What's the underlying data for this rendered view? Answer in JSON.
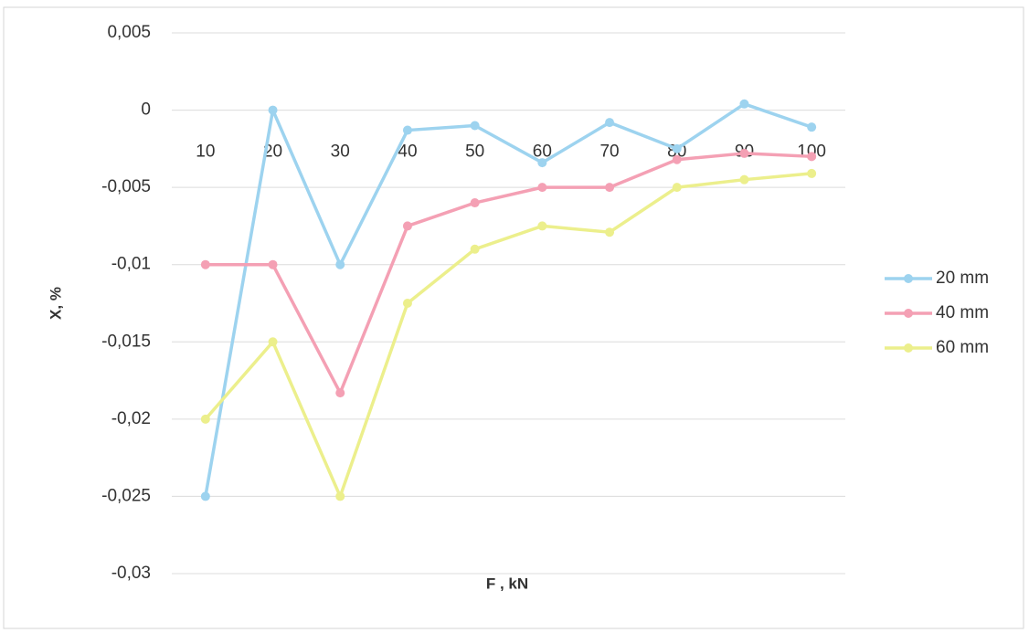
{
  "chart_data": {
    "type": "line",
    "x_label": "F , kN",
    "y_label": "X, %",
    "categories": [
      "10",
      "20",
      "30",
      "40",
      "50",
      "60",
      "70",
      "80",
      "90",
      "100"
    ],
    "series": [
      {
        "name": "20 mm",
        "color": "#9dd3ef",
        "values": [
          -0.025,
          0,
          -0.01,
          -0.0013,
          -0.001,
          -0.0034,
          -0.0008,
          -0.0025,
          0.0004,
          -0.0011
        ]
      },
      {
        "name": "40 mm",
        "color": "#f4a0b4",
        "values": [
          -0.01,
          -0.01,
          -0.0183,
          -0.0075,
          -0.006,
          -0.005,
          -0.005,
          -0.0032,
          -0.0028,
          -0.003
        ]
      },
      {
        "name": "60 mm",
        "color": "#ecef8c",
        "values": [
          -0.02,
          -0.015,
          -0.025,
          -0.0125,
          -0.009,
          -0.0075,
          -0.0079,
          -0.005,
          -0.0045,
          -0.0041
        ]
      }
    ],
    "ylim": [
      -0.03,
      0.005
    ],
    "yticks": [
      {
        "value": -0.03,
        "label": "-0,03"
      },
      {
        "value": -0.025,
        "label": "-0,025"
      },
      {
        "value": -0.02,
        "label": "-0,02"
      },
      {
        "value": -0.015,
        "label": "-0,015"
      },
      {
        "value": -0.01,
        "label": "-0,01"
      },
      {
        "value": -0.005,
        "label": "-0,005"
      },
      0,
      {
        "value": 0.005,
        "label": "0,005"
      }
    ],
    "grid": true,
    "legend": "right"
  }
}
